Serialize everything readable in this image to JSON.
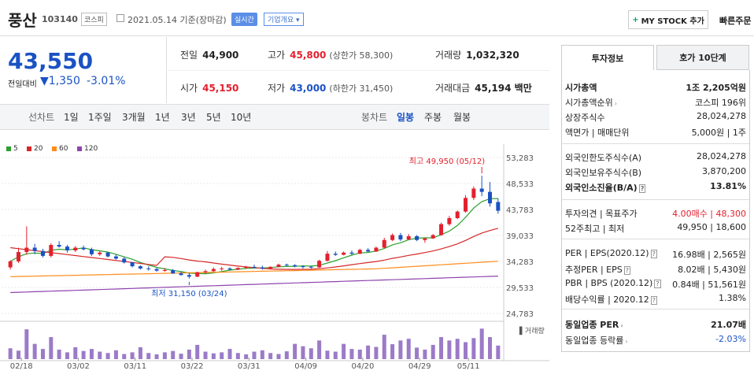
{
  "header": {
    "name": "풍산",
    "code": "103140",
    "market": "코스피",
    "date": "2021.05.14 기준(장마감)",
    "realtime": "실시간",
    "company_info": "기업개요 ▾",
    "mystock_label": "MY STOCK 추가",
    "mystock_plus": "+",
    "quick_order": "빠른주문"
  },
  "price": {
    "current": "43,550",
    "change_label": "전일대비",
    "change_arrow": "▼",
    "change_abs": "1,350",
    "change_pct": "-3.01%"
  },
  "stats": {
    "prev_label": "전일",
    "prev_val": "44,900",
    "high_label": "고가",
    "high_val": "45,800",
    "high_sub": "(상한가 58,300)",
    "volume_label": "거래량",
    "volume_val": "1,032,320",
    "open_label": "시가",
    "open_val": "45,150",
    "low_label": "저가",
    "low_val": "43,000",
    "low_sub": "(하한가 31,450)",
    "amount_label": "거래대금",
    "amount_val": "45,194 백만"
  },
  "period_tabs": {
    "line_label": "선차트",
    "line_items": [
      "1일",
      "1주일",
      "3개월",
      "1년",
      "3년",
      "5년",
      "10년"
    ],
    "candle_label": "봉차트",
    "candle_items": [
      "일봉",
      "주봉",
      "월봉"
    ],
    "candle_active": "일봉"
  },
  "legend": [
    {
      "label": "5",
      "color": "#2ca02c"
    },
    {
      "label": "20",
      "color": "#d62728"
    },
    {
      "label": "60",
      "color": "#ff8c1a"
    },
    {
      "label": "120",
      "color": "#8e44ad"
    }
  ],
  "chart_data": {
    "type": "candlestick",
    "ylim": [
      24783,
      53283
    ],
    "y_ticks": [
      "53,283",
      "48,533",
      "43,783",
      "39,033",
      "34,283",
      "29,533",
      "24,783"
    ],
    "x_labels": [
      "02/18",
      "03/02",
      "03/11",
      "03/22",
      "03/31",
      "04/09",
      "04/20",
      "04/29",
      "05/11"
    ],
    "high_annotation": "최고 49,950 (05/12)",
    "low_annotation": "최저 31,150 (03/24)",
    "volume_label": "거래량",
    "up_color": "#e4202e",
    "down_color": "#1a52c4",
    "candles": [
      [
        33200,
        34500,
        32800,
        34300
      ],
      [
        34300,
        36800,
        34000,
        36000
      ],
      [
        36000,
        40700,
        35500,
        36800
      ],
      [
        36800,
        37500,
        35600,
        36200
      ],
      [
        36200,
        36600,
        35000,
        35300
      ],
      [
        35300,
        37600,
        35000,
        37300
      ],
      [
        37300,
        38000,
        36800,
        37000
      ],
      [
        37000,
        37300,
        35900,
        36300
      ],
      [
        36300,
        37100,
        36000,
        36800
      ],
      [
        36800,
        37200,
        36300,
        36500
      ],
      [
        36500,
        36800,
        35300,
        35600
      ],
      [
        35600,
        36200,
        35300,
        35900
      ],
      [
        35900,
        36000,
        35000,
        35200
      ],
      [
        35200,
        35500,
        34600,
        34800
      ],
      [
        34800,
        35100,
        33900,
        34100
      ],
      [
        34100,
        34200,
        33200,
        33400
      ],
      [
        33400,
        33600,
        32800,
        33000
      ],
      [
        33000,
        33400,
        32600,
        32900
      ],
      [
        32900,
        33100,
        32400,
        32600
      ],
      [
        32600,
        33100,
        32400,
        32700
      ],
      [
        32700,
        32900,
        32000,
        32100
      ],
      [
        32100,
        32500,
        31700,
        31800
      ],
      [
        31800,
        32200,
        31150,
        31500
      ],
      [
        31500,
        32400,
        31400,
        32300
      ],
      [
        32300,
        32800,
        32000,
        32500
      ],
      [
        32500,
        33200,
        32400,
        32900
      ],
      [
        32900,
        33300,
        32600,
        33000
      ],
      [
        33000,
        33200,
        32600,
        32800
      ],
      [
        32800,
        33200,
        32700,
        33100
      ],
      [
        33100,
        33500,
        32900,
        33300
      ],
      [
        33300,
        33700,
        33000,
        33200
      ],
      [
        33200,
        33500,
        32800,
        33000
      ],
      [
        33000,
        33400,
        32800,
        33300
      ],
      [
        33300,
        33900,
        33200,
        33700
      ],
      [
        33700,
        33900,
        33400,
        33600
      ],
      [
        33600,
        33800,
        33200,
        33400
      ],
      [
        33400,
        33600,
        33000,
        33300
      ],
      [
        33300,
        33500,
        33000,
        33200
      ],
      [
        33200,
        34600,
        33100,
        34400
      ],
      [
        34400,
        36200,
        34300,
        35700
      ],
      [
        35700,
        36100,
        35300,
        35500
      ],
      [
        35500,
        36100,
        35400,
        35900
      ],
      [
        35900,
        36300,
        35500,
        35700
      ],
      [
        35700,
        36600,
        35600,
        36400
      ],
      [
        36400,
        36700,
        36000,
        36100
      ],
      [
        36100,
        37000,
        36000,
        36800
      ],
      [
        36800,
        38600,
        36700,
        38200
      ],
      [
        38200,
        39400,
        38000,
        39100
      ],
      [
        39100,
        39500,
        38000,
        38300
      ],
      [
        38300,
        39300,
        38200,
        38900
      ],
      [
        38900,
        39100,
        38000,
        38200
      ],
      [
        38200,
        38600,
        37700,
        38500
      ],
      [
        38500,
        39300,
        38400,
        39100
      ],
      [
        39100,
        41400,
        39000,
        41100
      ],
      [
        41100,
        42600,
        40800,
        42200
      ],
      [
        42200,
        43600,
        42000,
        43400
      ],
      [
        43400,
        46400,
        43200,
        45900
      ],
      [
        45900,
        48000,
        45500,
        47600
      ],
      [
        47600,
        49950,
        46200,
        47000
      ],
      [
        47000,
        48800,
        44300,
        44900
      ],
      [
        45150,
        45800,
        43000,
        43550
      ]
    ],
    "volumes": [
      0.32,
      0.25,
      0.88,
      0.45,
      0.3,
      0.65,
      0.28,
      0.2,
      0.35,
      0.24,
      0.3,
      0.22,
      0.18,
      0.26,
      0.15,
      0.2,
      0.35,
      0.18,
      0.14,
      0.2,
      0.24,
      0.16,
      0.28,
      0.42,
      0.22,
      0.17,
      0.2,
      0.3,
      0.18,
      0.14,
      0.22,
      0.26,
      0.18,
      0.15,
      0.23,
      0.45,
      0.38,
      0.32,
      0.55,
      0.25,
      0.22,
      0.45,
      0.3,
      0.28,
      0.4,
      0.36,
      0.72,
      0.44,
      0.55,
      0.6,
      0.34,
      0.28,
      0.42,
      0.65,
      0.55,
      0.6,
      0.5,
      0.62,
      0.9,
      0.65,
      0.4
    ]
  },
  "side": {
    "tab_invest": "투자정보",
    "tab_hoga": "호가 10단계",
    "rows": [
      {
        "l": "시가총액",
        "r": "1조 2,205억원",
        "bold": true
      },
      {
        "l": "시가총액순위",
        "r": "코스피 196위",
        "arrow": true
      },
      {
        "l": "상장주식수",
        "r": "28,024,278"
      },
      {
        "l": "액면가 | 매매단위",
        "r": "5,000원 | 1주"
      },
      {
        "l": "외국인한도주식수(A)",
        "r": "28,024,278"
      },
      {
        "l": "외국인보유주식수(B)",
        "r": "3,870,200"
      },
      {
        "l": "외국인소진율(B/A)",
        "r": "13.81%",
        "bold": true,
        "tag": true
      },
      {
        "l": "투자의견 | 목표주가",
        "r": "4.00매수 | 48,300",
        "rcolor": "red"
      },
      {
        "l": "52주최고 | 최저",
        "r": "49,950 | 18,600"
      },
      {
        "l": "PER | EPS(2020.12)",
        "r": "16.98배 | 2,565원",
        "tag": true
      },
      {
        "l": "추정PER | EPS",
        "r": "8.02배 | 5,430원",
        "tag": true
      },
      {
        "l": "PBR | BPS (2020.12)",
        "r": "0.84배 | 51,561원",
        "tag": true
      },
      {
        "l": "배당수익률 | 2020.12",
        "r": "1.38%",
        "tag": true
      },
      {
        "l": "동일업종 PER",
        "r": "21.07배",
        "bold": true,
        "arrow": true
      },
      {
        "l": "동일업종 등락률",
        "r": "-2.03%",
        "arrow": true,
        "rcolor": "blue"
      }
    ]
  }
}
